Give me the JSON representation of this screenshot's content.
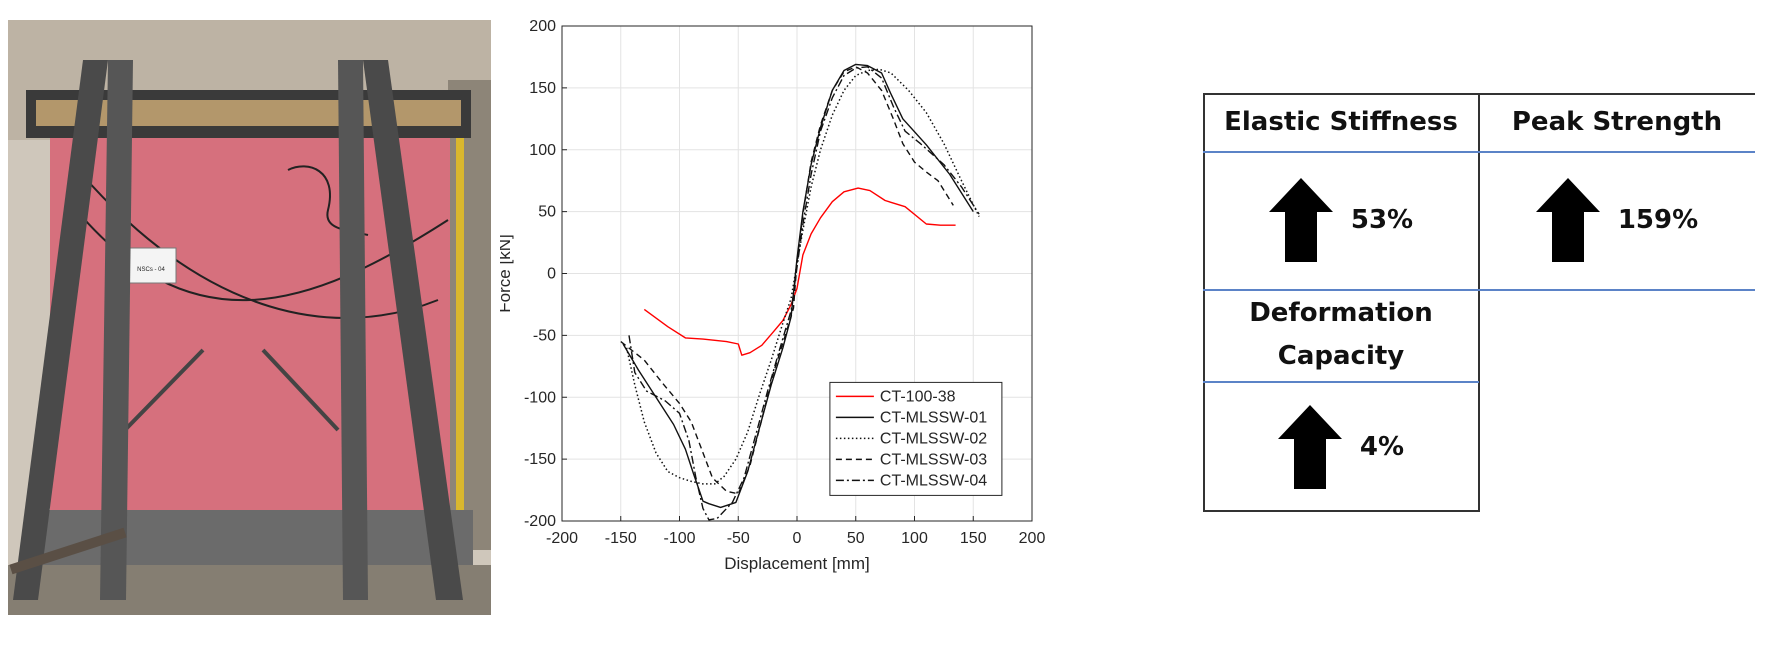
{
  "photo": {
    "sign_label": "NSCs - 04"
  },
  "chart_data": {
    "type": "line",
    "title": "",
    "xlabel": "Displacement [mm]",
    "ylabel": "Force [kN]",
    "xlim": [
      -200,
      200
    ],
    "ylim": [
      -200,
      200
    ],
    "xticks": [
      -200,
      -150,
      -100,
      -50,
      0,
      50,
      100,
      150,
      200
    ],
    "yticks": [
      -200,
      -150,
      -100,
      -50,
      0,
      50,
      100,
      150,
      200
    ],
    "grid": true,
    "legend_position": "bottom-right",
    "series": [
      {
        "name": "CT-100-38",
        "color": "#ff0000",
        "dash": "solid",
        "x": [
          -130,
          -110,
          -95,
          -80,
          -60,
          -50,
          -47,
          -40,
          -30,
          -20,
          -12,
          -5,
          0,
          5,
          12,
          20,
          30,
          40,
          52,
          62,
          75,
          92,
          110,
          122,
          135
        ],
        "y": [
          -29,
          -43,
          -52,
          -53,
          -55,
          -57,
          -66,
          -64,
          -58,
          -47,
          -38,
          -25,
          -12,
          15,
          32,
          45,
          58,
          66,
          69,
          67,
          59,
          54,
          40,
          39,
          39
        ]
      },
      {
        "name": "CT-MLSSW-01",
        "color": "#111111",
        "dash": "solid",
        "x": [
          -148,
          -135,
          -120,
          -105,
          -95,
          -88,
          -80,
          -75,
          -65,
          -52,
          -42,
          -32,
          -22,
          -12,
          -5,
          0,
          5,
          12,
          20,
          30,
          40,
          50,
          60,
          72,
          80,
          90,
          110,
          130,
          150
        ],
        "y": [
          -57,
          -78,
          -100,
          -122,
          -142,
          -162,
          -184,
          -186,
          -189,
          -185,
          -160,
          -125,
          -90,
          -60,
          -35,
          12,
          50,
          88,
          118,
          148,
          164,
          169,
          168,
          162,
          145,
          125,
          104,
          80,
          50
        ]
      },
      {
        "name": "CT-MLSSW-02",
        "color": "#111111",
        "dash": "dotted",
        "x": [
          -145,
          -138,
          -130,
          -120,
          -110,
          -100,
          -90,
          -80,
          -70,
          -62,
          -52,
          -42,
          -32,
          -22,
          -12,
          -5,
          0,
          5,
          12,
          20,
          30,
          40,
          50,
          60,
          70,
          80,
          95,
          110,
          125,
          140,
          155
        ],
        "y": [
          -60,
          -90,
          -120,
          -145,
          -160,
          -165,
          -168,
          -170,
          -170,
          -164,
          -150,
          -128,
          -98,
          -70,
          -40,
          -20,
          8,
          35,
          70,
          100,
          128,
          148,
          160,
          164,
          165,
          162,
          148,
          130,
          105,
          75,
          46
        ]
      },
      {
        "name": "CT-MLSSW-03",
        "color": "#111111",
        "dash": "dashed",
        "x": [
          -150,
          -130,
          -115,
          -100,
          -90,
          -82,
          -72,
          -60,
          -50,
          -40,
          -30,
          -20,
          -10,
          -3,
          0,
          5,
          12,
          20,
          30,
          40,
          50,
          60,
          72,
          82,
          90,
          100,
          110,
          120,
          133
        ],
        "y": [
          -55,
          -70,
          -88,
          -105,
          -120,
          -140,
          -165,
          -176,
          -178,
          -155,
          -118,
          -80,
          -50,
          -28,
          10,
          48,
          90,
          120,
          148,
          163,
          167,
          162,
          148,
          125,
          105,
          90,
          82,
          75,
          55
        ]
      },
      {
        "name": "CT-MLSSW-04",
        "color": "#111111",
        "dash": "dashdot",
        "x": [
          -143,
          -138,
          -128,
          -112,
          -100,
          -92,
          -86,
          -80,
          -75,
          -68,
          -55,
          -45,
          -35,
          -25,
          -15,
          -5,
          0,
          5,
          12,
          20,
          30,
          40,
          50,
          60,
          72,
          82,
          92,
          105,
          125,
          140,
          155
        ],
        "y": [
          -50,
          -80,
          -95,
          -103,
          -113,
          -135,
          -165,
          -190,
          -199,
          -198,
          -185,
          -165,
          -130,
          -95,
          -62,
          -30,
          5,
          40,
          80,
          115,
          142,
          160,
          166,
          167,
          158,
          135,
          115,
          105,
          88,
          70,
          48
        ]
      }
    ]
  },
  "summary": {
    "elastic_stiffness": {
      "label": "Elastic Stiffness",
      "value": "53%"
    },
    "peak_strength": {
      "label": "Peak Strength",
      "value": "159%"
    },
    "deformation_capacity": {
      "label": "Deformation Capacity",
      "value": "4%"
    },
    "border_color": "#333333",
    "divider_color": "#5b83c7",
    "arrow_color": "#000000"
  }
}
